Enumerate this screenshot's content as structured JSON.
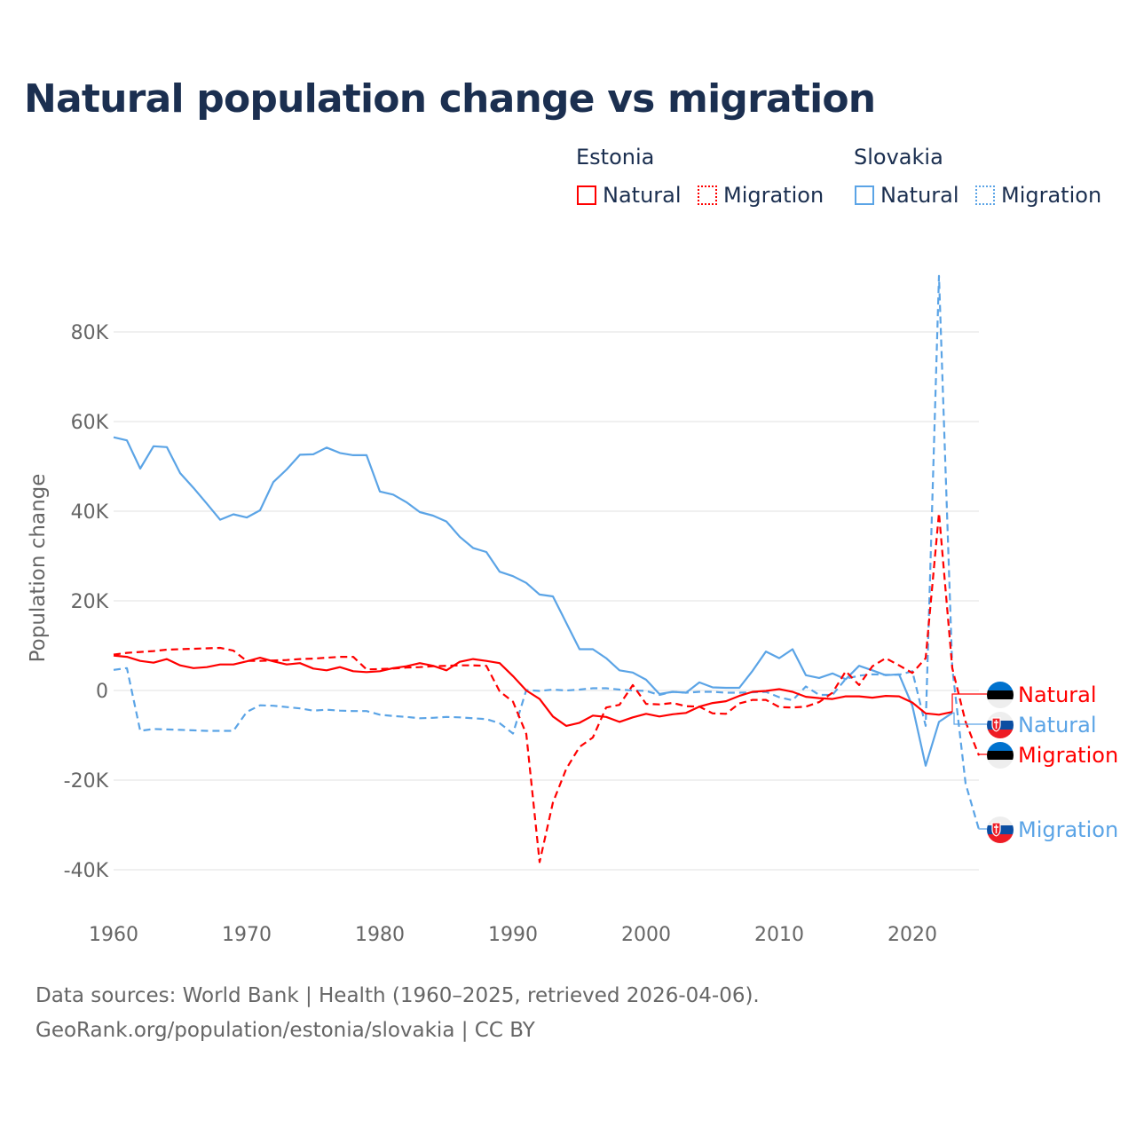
{
  "chart_data": {
    "type": "line",
    "title": "Natural population change vs migration",
    "xlabel": "",
    "ylabel": "Population change",
    "xlim": [
      1960,
      2025
    ],
    "ylim": [
      -50000,
      95000
    ],
    "x_ticks": [
      1960,
      1970,
      1980,
      1990,
      2000,
      2010,
      2020
    ],
    "x_tick_labels": [
      "1960",
      "1970",
      "1980",
      "1990",
      "2000",
      "2010",
      "2020"
    ],
    "y_ticks": [
      -40000,
      -20000,
      0,
      20000,
      40000,
      60000,
      80000
    ],
    "y_tick_labels": [
      "-40K",
      "-20K",
      "0",
      "20K",
      "40K",
      "60K",
      "80K"
    ],
    "grid": true,
    "legend": {
      "placement": "top-right",
      "groups": [
        {
          "name": "Estonia",
          "items": [
            "Natural",
            "Migration"
          ]
        },
        {
          "name": "Slovakia",
          "items": [
            "Natural",
            "Migration"
          ]
        }
      ]
    },
    "start_year": 1960,
    "series": [
      {
        "name": "Estonia Natural",
        "country": "Estonia",
        "kind": "Natural",
        "color": "#ff0000",
        "dash": false,
        "label": "Natural",
        "values": [
          7800,
          7500,
          6600,
          6200,
          7000,
          5600,
          5000,
          5200,
          5800,
          5800,
          6500,
          7300,
          6500,
          5800,
          6100,
          4900,
          4500,
          5200,
          4300,
          4100,
          4300,
          5000,
          5400,
          6100,
          5500,
          4500,
          6400,
          7000,
          6600,
          6100,
          3200,
          0,
          -1900,
          -5800,
          -7900,
          -7200,
          -5600,
          -5900,
          -7000,
          -6000,
          -5200,
          -5800,
          -5300,
          -5000,
          -3600,
          -2800,
          -2400,
          -1200,
          -300,
          -100,
          300,
          -300,
          -1400,
          -1700,
          -1900,
          -1300,
          -1300,
          -1600,
          -1200,
          -1300,
          -2700,
          -5100,
          -5400,
          -4800
        ]
      },
      {
        "name": "Slovakia Natural",
        "country": "Slovakia",
        "kind": "Natural",
        "color": "#5ba4e6",
        "dash": false,
        "label": "Natural",
        "values": [
          56500,
          55800,
          49500,
          54500,
          54300,
          48500,
          45200,
          41700,
          38100,
          39300,
          38600,
          40200,
          46500,
          49300,
          52600,
          52700,
          54200,
          53000,
          52500,
          52500,
          44400,
          43700,
          42000,
          39800,
          39000,
          37700,
          34300,
          31800,
          30900,
          26500,
          25500,
          24000,
          21400,
          21000,
          15100,
          9200,
          9200,
          7200,
          4500,
          4000,
          2400,
          -800,
          -300,
          -500,
          1800,
          700,
          600,
          600,
          4400,
          8700,
          7200,
          9200,
          3400,
          2800,
          3800,
          2500,
          5500,
          4500,
          3400,
          3600,
          -3400,
          -16800,
          -7000,
          -5000
        ]
      },
      {
        "name": "Estonia Migration",
        "country": "Estonia",
        "kind": "Migration",
        "color": "#ff0000",
        "dash": true,
        "label": "Migration",
        "values": [
          8000,
          8400,
          8600,
          8800,
          9100,
          9200,
          9300,
          9400,
          9500,
          8900,
          6600,
          6600,
          6700,
          6800,
          7000,
          7100,
          7300,
          7500,
          7500,
          4700,
          4800,
          4900,
          5100,
          5200,
          5400,
          5500,
          5600,
          5600,
          5500,
          -200,
          -2500,
          -9700,
          -38300,
          -25000,
          -17500,
          -12600,
          -10500,
          -3800,
          -3200,
          1200,
          -3000,
          -3100,
          -2800,
          -3500,
          -3600,
          -5100,
          -5200,
          -2900,
          -2100,
          -2100,
          -3700,
          -3800,
          -3600,
          -2600,
          -500,
          4300,
          1200,
          5400,
          7200,
          5600,
          3900,
          7200,
          39600,
          5000,
          -7000,
          -14500
        ]
      },
      {
        "name": "Slovakia Migration",
        "country": "Slovakia",
        "kind": "Migration",
        "color": "#5ba4e6",
        "dash": true,
        "label": "Migration",
        "values": [
          4600,
          5000,
          -9000,
          -8600,
          -8700,
          -8800,
          -8900,
          -9000,
          -9000,
          -9000,
          -4800,
          -3300,
          -3400,
          -3700,
          -4000,
          -4500,
          -4300,
          -4500,
          -4600,
          -4600,
          -5400,
          -5700,
          -5900,
          -6200,
          -6100,
          -5900,
          -6000,
          -6200,
          -6400,
          -7300,
          -9600,
          100,
          -100,
          200,
          0,
          200,
          500,
          500,
          200,
          0,
          -100,
          -1000,
          -300,
          -500,
          -300,
          -300,
          -500,
          -500,
          -400,
          -300,
          -1500,
          -2200,
          900,
          -1000,
          -1000,
          2600,
          3300,
          3600,
          3500,
          3500,
          4300,
          -7900,
          92500,
          5000,
          -20800,
          -31000
        ]
      }
    ]
  },
  "footer": {
    "line1": "Data sources: World Bank | Health (1960–2025, retrieved 2026-04-06).",
    "line2": "GeoRank.org/population/estonia/slovakia | CC BY"
  }
}
